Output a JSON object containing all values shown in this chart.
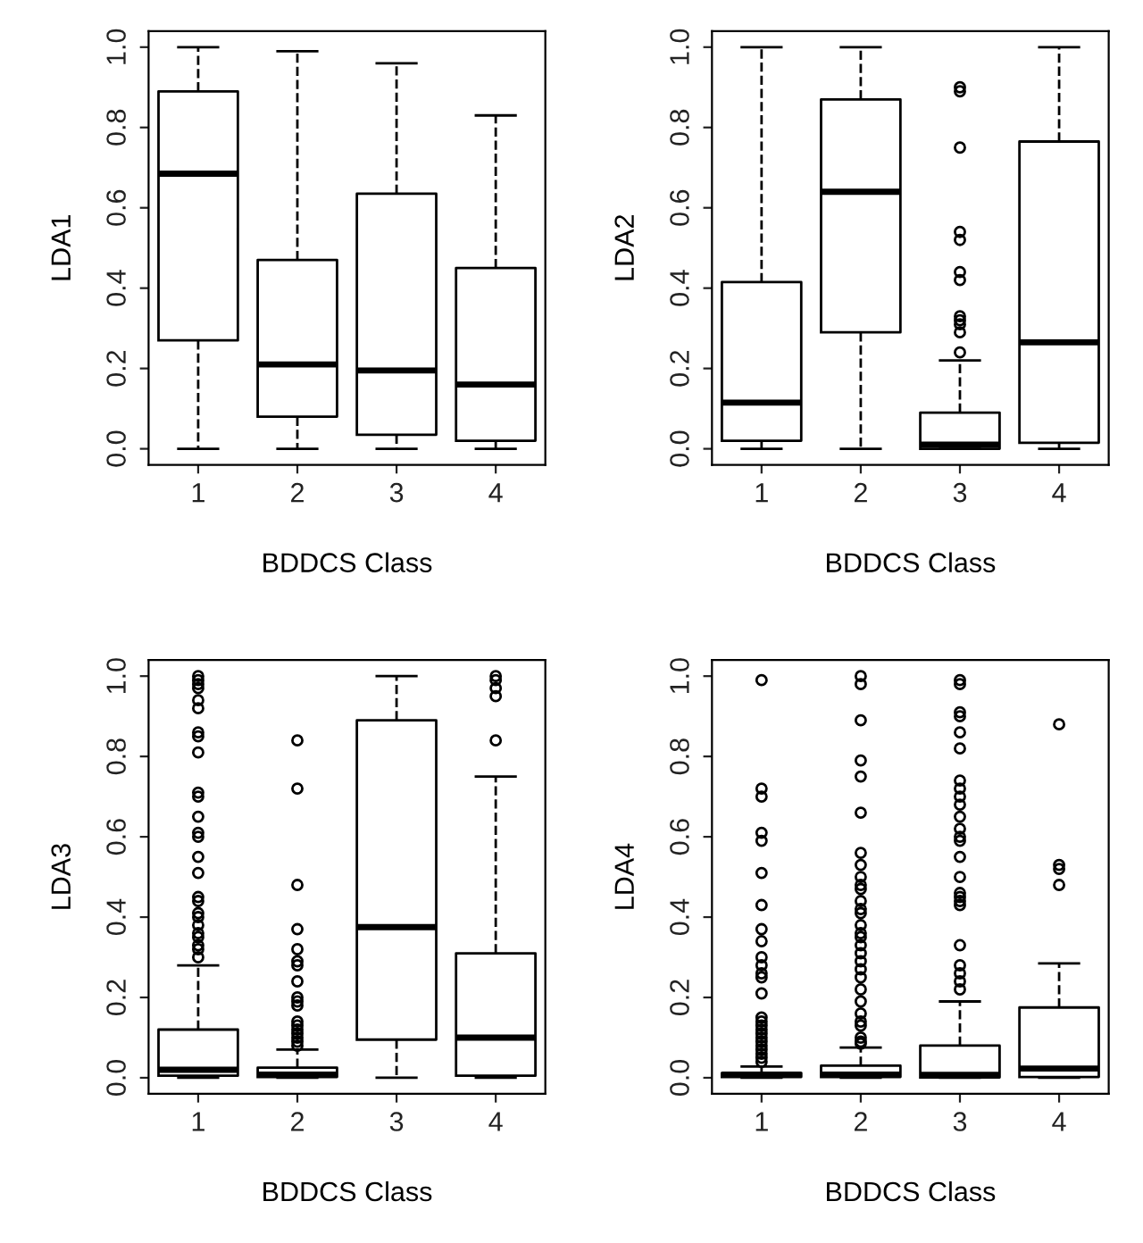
{
  "chart_data": [
    {
      "type": "box",
      "xlabel": "BDDCS Class",
      "ylabel": "LDA1",
      "categories": [
        "1",
        "2",
        "3",
        "4"
      ],
      "ylim": [
        -0.04,
        1.04
      ],
      "yticks": [
        {
          "value": 0,
          "label": "0.0"
        },
        {
          "value": 0.2,
          "label": "0.2"
        },
        {
          "value": 0.4,
          "label": "0.4"
        },
        {
          "value": 0.6,
          "label": "0.6"
        },
        {
          "value": 0.8,
          "label": "0.8"
        },
        {
          "value": 1,
          "label": "1.0"
        }
      ],
      "line_style": "dashed",
      "marker": "circle",
      "boxes": [
        {
          "low": 0,
          "q1": 0.27,
          "median": 0.685,
          "q3": 0.89,
          "high": 1.0
        },
        {
          "low": 0,
          "q1": 0.08,
          "median": 0.21,
          "q3": 0.47,
          "high": 0.99
        },
        {
          "low": 0,
          "q1": 0.035,
          "median": 0.195,
          "q3": 0.635,
          "high": 0.96
        },
        {
          "low": 0,
          "q1": 0.02,
          "median": 0.16,
          "q3": 0.45,
          "high": 0.83
        }
      ]
    },
    {
      "type": "box",
      "xlabel": "BDDCS Class",
      "ylabel": "LDA2",
      "categories": [
        "1",
        "2",
        "3",
        "4"
      ],
      "ylim": [
        -0.04,
        1.04
      ],
      "yticks": [
        {
          "value": 0,
          "label": "0.0"
        },
        {
          "value": 0.2,
          "label": "0.2"
        },
        {
          "value": 0.4,
          "label": "0.4"
        },
        {
          "value": 0.6,
          "label": "0.6"
        },
        {
          "value": 0.8,
          "label": "0.8"
        },
        {
          "value": 1,
          "label": "1.0"
        }
      ],
      "line_style": "dashed",
      "marker": "circle",
      "boxes": [
        {
          "low": 0,
          "q1": 0.02,
          "median": 0.115,
          "q3": 0.415,
          "high": 1.0
        },
        {
          "low": 0,
          "q1": 0.29,
          "median": 0.64,
          "q3": 0.87,
          "high": 1.0
        },
        {
          "low": 0,
          "q1": 0.0,
          "median": 0.01,
          "q3": 0.09,
          "high": 0.22,
          "outliers": [
            0.9,
            0.89,
            0.75,
            0.54,
            0.52,
            0.44,
            0.42,
            0.33,
            0.32,
            0.31,
            0.29,
            0.24
          ]
        },
        {
          "low": 0,
          "q1": 0.015,
          "median": 0.265,
          "q3": 0.765,
          "high": 1.0
        }
      ]
    },
    {
      "type": "box",
      "xlabel": "BDDCS Class",
      "ylabel": "LDA3",
      "categories": [
        "1",
        "2",
        "3",
        "4"
      ],
      "ylim": [
        -0.04,
        1.04
      ],
      "yticks": [
        {
          "value": 0,
          "label": "0.0"
        },
        {
          "value": 0.2,
          "label": "0.2"
        },
        {
          "value": 0.4,
          "label": "0.4"
        },
        {
          "value": 0.6,
          "label": "0.6"
        },
        {
          "value": 0.8,
          "label": "0.8"
        },
        {
          "value": 1,
          "label": "1.0"
        }
      ],
      "line_style": "dashed",
      "marker": "circle",
      "boxes": [
        {
          "low": 0,
          "q1": 0.005,
          "median": 0.02,
          "q3": 0.12,
          "high": 0.28,
          "outliers": [
            1.0,
            0.99,
            0.98,
            0.97,
            0.94,
            0.92,
            0.86,
            0.85,
            0.81,
            0.71,
            0.7,
            0.65,
            0.61,
            0.6,
            0.55,
            0.51,
            0.45,
            0.44,
            0.41,
            0.4,
            0.38,
            0.36,
            0.35,
            0.33,
            0.32,
            0.3
          ]
        },
        {
          "low": 0,
          "q1": 0.002,
          "median": 0.008,
          "q3": 0.025,
          "high": 0.07,
          "outliers": [
            0.84,
            0.72,
            0.48,
            0.37,
            0.32,
            0.29,
            0.28,
            0.24,
            0.2,
            0.19,
            0.18,
            0.14,
            0.13,
            0.12,
            0.11,
            0.1,
            0.09,
            0.08
          ]
        },
        {
          "low": 0,
          "q1": 0.095,
          "median": 0.375,
          "q3": 0.89,
          "high": 1.0
        },
        {
          "low": 0,
          "q1": 0.005,
          "median": 0.1,
          "q3": 0.31,
          "high": 0.75,
          "outliers": [
            1.0,
            0.99,
            0.97,
            0.95,
            0.84
          ]
        }
      ]
    },
    {
      "type": "box",
      "xlabel": "BDDCS Class",
      "ylabel": "LDA4",
      "categories": [
        "1",
        "2",
        "3",
        "4"
      ],
      "ylim": [
        -0.04,
        1.04
      ],
      "yticks": [
        {
          "value": 0,
          "label": "0.0"
        },
        {
          "value": 0.2,
          "label": "0.2"
        },
        {
          "value": 0.4,
          "label": "0.4"
        },
        {
          "value": 0.6,
          "label": "0.6"
        },
        {
          "value": 0.8,
          "label": "0.8"
        },
        {
          "value": 1,
          "label": "1.0"
        }
      ],
      "line_style": "dashed",
      "marker": "circle",
      "boxes": [
        {
          "low": 0,
          "q1": 0.002,
          "median": 0.008,
          "q3": 0.012,
          "high": 0.028,
          "outliers": [
            0.99,
            0.72,
            0.7,
            0.61,
            0.59,
            0.51,
            0.43,
            0.37,
            0.34,
            0.3,
            0.28,
            0.26,
            0.25,
            0.21,
            0.15,
            0.14,
            0.13,
            0.12,
            0.11,
            0.1,
            0.09,
            0.08,
            0.07,
            0.06,
            0.05,
            0.04
          ]
        },
        {
          "low": 0,
          "q1": 0.002,
          "median": 0.008,
          "q3": 0.03,
          "high": 0.075,
          "outliers": [
            1.0,
            0.98,
            0.89,
            0.79,
            0.75,
            0.66,
            0.56,
            0.53,
            0.5,
            0.48,
            0.47,
            0.44,
            0.42,
            0.41,
            0.38,
            0.36,
            0.35,
            0.33,
            0.31,
            0.29,
            0.27,
            0.25,
            0.22,
            0.19,
            0.16,
            0.14,
            0.13,
            0.1,
            0.09,
            0.085
          ]
        },
        {
          "low": 0,
          "q1": 0.001,
          "median": 0.007,
          "q3": 0.08,
          "high": 0.19,
          "outliers": [
            0.99,
            0.98,
            0.91,
            0.9,
            0.86,
            0.82,
            0.74,
            0.72,
            0.7,
            0.68,
            0.65,
            0.62,
            0.6,
            0.59,
            0.55,
            0.5,
            0.46,
            0.45,
            0.44,
            0.43,
            0.33,
            0.28,
            0.26,
            0.24,
            0.22
          ]
        },
        {
          "low": 0,
          "q1": 0.002,
          "median": 0.023,
          "q3": 0.175,
          "high": 0.285,
          "outliers": [
            0.88,
            0.53,
            0.52,
            0.48
          ]
        }
      ]
    }
  ]
}
